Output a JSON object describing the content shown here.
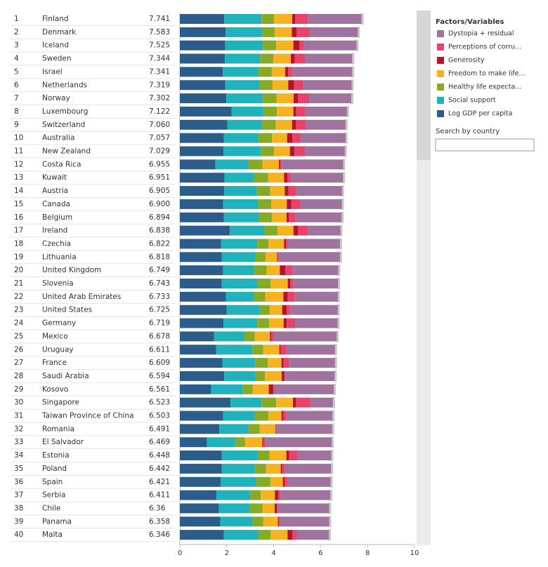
{
  "chart_data": {
    "type": "bar",
    "orientation": "horizontal",
    "stacked": true,
    "ranks": [
      1,
      2,
      3,
      4,
      5,
      6,
      7,
      8,
      9,
      10,
      11,
      12,
      13,
      14,
      15,
      16,
      17,
      18,
      19,
      20,
      21,
      22,
      23,
      24,
      25,
      26,
      27,
      28,
      29,
      30,
      31,
      32,
      33,
      34,
      35,
      36,
      37,
      38,
      39,
      40
    ],
    "categories": [
      "Finland",
      "Denmark",
      "Iceland",
      "Sweden",
      "Israel",
      "Netherlands",
      "Norway",
      "Luxembourg",
      "Switzerland",
      "Australia",
      "New Zealand",
      "Costa Rica",
      "Kuwait",
      "Austria",
      "Canada",
      "Belgium",
      "Ireland",
      "Czechia",
      "Lithuania",
      "United Kingdom",
      "Slovenia",
      "United Arab Emirates",
      "United States",
      "Germany",
      "Mexico",
      "Uruguay",
      "France",
      "Saudi Arabia",
      "Kosovo",
      "Singapore",
      "Taiwan Province of China",
      "Romania",
      "El Salvador",
      "Estonia",
      "Poland",
      "Spain",
      "Serbia",
      "Chile",
      "Panama",
      "Malta"
    ],
    "scores": [
      7.741,
      7.583,
      7.525,
      7.344,
      7.341,
      7.319,
      7.302,
      7.122,
      {
        "value": 7.06,
        "label": "7.060"
      },
      7.057,
      7.029,
      6.955,
      6.951,
      6.905,
      {
        "value": 6.9,
        "label": "6.900"
      },
      6.894,
      6.838,
      6.822,
      6.818,
      6.749,
      6.743,
      6.733,
      6.725,
      6.719,
      6.678,
      6.611,
      6.609,
      6.594,
      6.561,
      6.523,
      6.503,
      6.491,
      6.469,
      6.448,
      6.442,
      6.421,
      6.411,
      6.36,
      6.358,
      6.346
    ],
    "series": [
      {
        "name": "Log GDP per capita",
        "color": "#2b5c8a",
        "values": [
          1.89,
          1.95,
          1.93,
          1.92,
          1.83,
          1.94,
          1.98,
          2.2,
          2.03,
          1.87,
          1.86,
          1.51,
          1.9,
          1.89,
          1.85,
          1.88,
          2.13,
          1.75,
          1.78,
          1.84,
          1.78,
          1.97,
          1.99,
          1.86,
          1.46,
          1.55,
          1.81,
          1.89,
          1.33,
          2.16,
          1.84,
          1.68,
          1.15,
          1.79,
          1.79,
          1.74,
          1.56,
          1.66,
          1.72,
          1.87
        ]
      },
      {
        "name": "Social support",
        "color": "#1fb2bb",
        "values": [
          1.59,
          1.55,
          1.61,
          1.5,
          1.51,
          1.46,
          1.56,
          1.36,
          1.46,
          1.47,
          1.59,
          1.42,
          1.27,
          1.4,
          1.49,
          1.49,
          1.48,
          1.55,
          1.45,
          1.34,
          1.53,
          1.19,
          1.41,
          1.44,
          1.28,
          1.54,
          1.39,
          1.33,
          1.34,
          1.32,
          1.35,
          1.25,
          1.21,
          1.53,
          1.4,
          1.51,
          1.44,
          1.33,
          1.38,
          1.47
        ]
      },
      {
        "name": "Healthy life expecta...",
        "color": "#86a926",
        "values": [
          0.54,
          0.54,
          0.56,
          0.56,
          0.58,
          0.55,
          0.58,
          0.58,
          0.6,
          0.59,
          0.56,
          0.59,
          0.59,
          0.56,
          0.56,
          0.55,
          0.56,
          0.48,
          0.43,
          0.52,
          0.56,
          0.48,
          0.43,
          0.51,
          0.45,
          0.46,
          0.55,
          0.41,
          0.43,
          0.62,
          0.59,
          0.47,
          0.41,
          0.5,
          0.48,
          0.61,
          0.45,
          0.53,
          0.46,
          0.53
        ]
      },
      {
        "name": "Freedom to make life...",
        "color": "#f5b31f",
        "values": [
          0.77,
          0.73,
          0.74,
          0.75,
          0.57,
          0.67,
          0.73,
          0.7,
          0.69,
          0.64,
          0.68,
          0.7,
          0.68,
          0.62,
          0.66,
          0.63,
          0.67,
          0.66,
          0.48,
          0.56,
          0.73,
          0.77,
          0.53,
          0.61,
          0.65,
          0.69,
          0.58,
          0.71,
          0.69,
          0.72,
          0.55,
          0.68,
          0.74,
          0.72,
          0.63,
          0.53,
          0.6,
          0.52,
          0.62,
          0.72
        ]
      },
      {
        "name": "Generosity",
        "color": "#b5122b",
        "values": [
          0.13,
          0.21,
          0.25,
          0.17,
          0.13,
          0.25,
          0.18,
          0.12,
          0.16,
          0.23,
          0.2,
          0.05,
          0.14,
          0.16,
          0.19,
          0.1,
          0.2,
          0.08,
          0.03,
          0.24,
          0.11,
          0.19,
          0.19,
          0.14,
          0.06,
          0.06,
          0.09,
          0.11,
          0.19,
          0.13,
          0.07,
          0.03,
          0.04,
          0.12,
          0.06,
          0.08,
          0.15,
          0.1,
          0.04,
          0.2
        ]
      },
      {
        "name": "Perceptions of corru...",
        "color": "#e8426a",
        "values": [
          0.54,
          0.53,
          0.19,
          0.44,
          0.14,
          0.39,
          0.48,
          0.39,
          0.44,
          0.32,
          0.45,
          0.08,
          0.16,
          0.31,
          0.37,
          0.28,
          0.42,
          0.06,
          0.04,
          0.3,
          0.12,
          0.29,
          0.16,
          0.35,
          0.11,
          0.22,
          0.23,
          0.05,
          0.03,
          0.64,
          0.13,
          0.02,
          0.11,
          0.36,
          0.12,
          0.12,
          0.09,
          0.04,
          0.03,
          0.18
        ]
      },
      {
        "name": "Dystopia + residual",
        "color": "#a0729e",
        "values": [
          2.28,
          2.07,
          2.25,
          2.0,
          2.58,
          2.06,
          1.79,
          1.77,
          1.68,
          1.94,
          1.69,
          2.61,
          2.21,
          1.97,
          1.78,
          1.96,
          1.38,
          2.24,
          2.61,
          1.95,
          1.91,
          1.84,
          2.02,
          1.81,
          2.67,
          2.09,
          1.96,
          2.09,
          2.55,
          0.93,
          1.97,
          2.36,
          2.81,
          1.43,
          1.96,
          1.83,
          2.12,
          2.18,
          2.11,
          1.38
        ]
      }
    ],
    "xlim": [
      0,
      10
    ],
    "xticks": [
      0,
      2,
      4,
      6,
      8,
      10
    ],
    "legend_title": "Factors/Variables",
    "search_label": "Search by country"
  }
}
